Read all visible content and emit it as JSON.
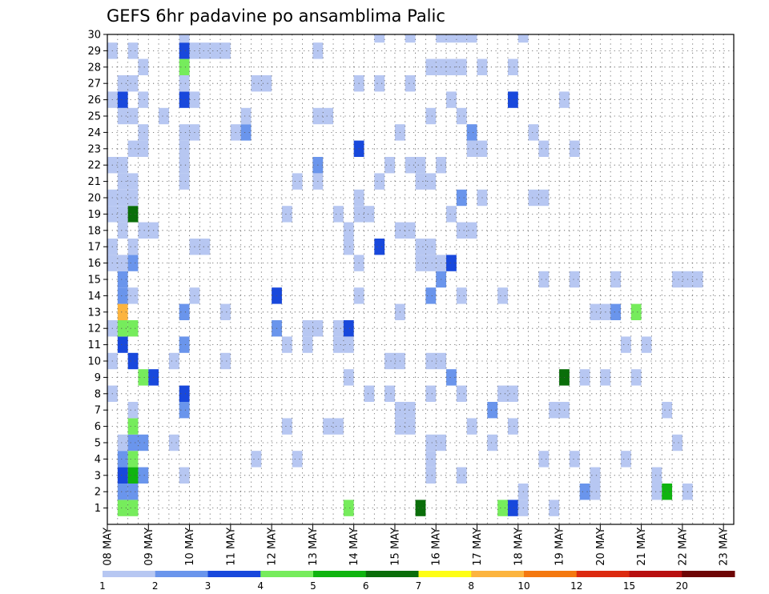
{
  "chart_data": {
    "type": "heatmap",
    "title": "GEFS 6hr padavine po ansamblima Palic",
    "y_ticks": [
      "1",
      "2",
      "3",
      "4",
      "5",
      "6",
      "7",
      "8",
      "9",
      "10",
      "11",
      "12",
      "13",
      "14",
      "15",
      "16",
      "17",
      "18",
      "19",
      "20",
      "21",
      "22",
      "23",
      "24",
      "25",
      "26",
      "27",
      "28",
      "29",
      "30"
    ],
    "x_ticks": [
      "08 MAY",
      "09 MAY",
      "10 MAY",
      "11 MAY",
      "12 MAY",
      "13 MAY",
      "14 MAY",
      "15 MAY",
      "16 MAY",
      "17 MAY",
      "18 MAY",
      "19 MAY",
      "20 MAY",
      "21 MAY",
      "22 MAY",
      "23 MAY"
    ],
    "time_steps_per_day": 4,
    "x_range": [
      0,
      61
    ],
    "y_range": [
      0,
      30
    ],
    "grid": "dotted",
    "legend": {
      "placement": "bottom",
      "colors": [
        "#b7c7f2",
        "#6a95ec",
        "#1848dc",
        "#76ec5c",
        "#10b410",
        "#0a6e0a",
        "#fefe14",
        "#fcb43e",
        "#f47810",
        "#dc2a10",
        "#b81010",
        "#6e0606"
      ],
      "labels": [
        "1",
        "2",
        "3",
        "4",
        "5",
        "6",
        "7",
        "8",
        "10",
        "12",
        "15",
        "20"
      ]
    },
    "palette_by_class": {
      "1": "#b7c7f2",
      "2": "#6a95ec",
      "3": "#1848dc",
      "4": "#76ec5c",
      "5": "#10b410",
      "6": "#0a6e0a",
      "7": "#fefe14",
      "8": "#fcb43e",
      "9": "#f47810",
      "10": "#dc2a10",
      "11": "#b81010",
      "12": "#6e0606"
    },
    "cells": [
      [
        1,
        1,
        4
      ],
      [
        1,
        2,
        4
      ],
      [
        1,
        23,
        4
      ],
      [
        1,
        30,
        6
      ],
      [
        1,
        38,
        4
      ],
      [
        1,
        39,
        3
      ],
      [
        1,
        40,
        1
      ],
      [
        1,
        43,
        1
      ],
      [
        2,
        1,
        2
      ],
      [
        2,
        2,
        2
      ],
      [
        2,
        40,
        1
      ],
      [
        2,
        46,
        2
      ],
      [
        2,
        47,
        1
      ],
      [
        2,
        53,
        1
      ],
      [
        2,
        54,
        5
      ],
      [
        2,
        56,
        1
      ],
      [
        3,
        1,
        3
      ],
      [
        3,
        2,
        5
      ],
      [
        3,
        3,
        2
      ],
      [
        3,
        7,
        1
      ],
      [
        3,
        31,
        1
      ],
      [
        3,
        34,
        1
      ],
      [
        3,
        47,
        1
      ],
      [
        3,
        53,
        1
      ],
      [
        4,
        1,
        2
      ],
      [
        4,
        2,
        4
      ],
      [
        4,
        14,
        1
      ],
      [
        4,
        18,
        1
      ],
      [
        4,
        31,
        1
      ],
      [
        4,
        42,
        1
      ],
      [
        4,
        45,
        1
      ],
      [
        4,
        50,
        1
      ],
      [
        5,
        1,
        1
      ],
      [
        5,
        2,
        2
      ],
      [
        5,
        3,
        2
      ],
      [
        5,
        6,
        1
      ],
      [
        5,
        31,
        1
      ],
      [
        5,
        32,
        1
      ],
      [
        5,
        37,
        1
      ],
      [
        5,
        55,
        1
      ],
      [
        6,
        2,
        4
      ],
      [
        6,
        17,
        1
      ],
      [
        6,
        21,
        1
      ],
      [
        6,
        22,
        1
      ],
      [
        6,
        28,
        1
      ],
      [
        6,
        29,
        1
      ],
      [
        6,
        35,
        1
      ],
      [
        6,
        39,
        1
      ],
      [
        7,
        2,
        1
      ],
      [
        7,
        7,
        2
      ],
      [
        7,
        28,
        1
      ],
      [
        7,
        29,
        1
      ],
      [
        7,
        37,
        2
      ],
      [
        7,
        43,
        1
      ],
      [
        7,
        44,
        1
      ],
      [
        7,
        54,
        1
      ],
      [
        8,
        0,
        1
      ],
      [
        8,
        7,
        3
      ],
      [
        8,
        25,
        1
      ],
      [
        8,
        27,
        1
      ],
      [
        8,
        31,
        1
      ],
      [
        8,
        34,
        1
      ],
      [
        8,
        38,
        1
      ],
      [
        8,
        39,
        1
      ],
      [
        9,
        3,
        4
      ],
      [
        9,
        4,
        3
      ],
      [
        9,
        23,
        1
      ],
      [
        9,
        33,
        2
      ],
      [
        9,
        44,
        6
      ],
      [
        9,
        46,
        1
      ],
      [
        9,
        48,
        1
      ],
      [
        9,
        51,
        1
      ],
      [
        10,
        0,
        1
      ],
      [
        10,
        2,
        3
      ],
      [
        10,
        6,
        1
      ],
      [
        10,
        11,
        1
      ],
      [
        10,
        27,
        1
      ],
      [
        10,
        28,
        1
      ],
      [
        10,
        31,
        1
      ],
      [
        10,
        32,
        1
      ],
      [
        11,
        1,
        3
      ],
      [
        11,
        7,
        2
      ],
      [
        11,
        17,
        1
      ],
      [
        11,
        19,
        1
      ],
      [
        11,
        22,
        1
      ],
      [
        11,
        23,
        1
      ],
      [
        11,
        50,
        1
      ],
      [
        11,
        52,
        1
      ],
      [
        12,
        0,
        1
      ],
      [
        12,
        1,
        4
      ],
      [
        12,
        2,
        4
      ],
      [
        12,
        16,
        2
      ],
      [
        12,
        19,
        1
      ],
      [
        12,
        20,
        1
      ],
      [
        12,
        22,
        1
      ],
      [
        12,
        23,
        3
      ],
      [
        13,
        1,
        8
      ],
      [
        13,
        7,
        2
      ],
      [
        13,
        11,
        1
      ],
      [
        13,
        28,
        1
      ],
      [
        13,
        47,
        1
      ],
      [
        13,
        48,
        1
      ],
      [
        13,
        49,
        2
      ],
      [
        13,
        51,
        4
      ],
      [
        14,
        1,
        2
      ],
      [
        14,
        2,
        1
      ],
      [
        14,
        8,
        1
      ],
      [
        14,
        16,
        3
      ],
      [
        14,
        24,
        1
      ],
      [
        14,
        31,
        2
      ],
      [
        14,
        34,
        1
      ],
      [
        14,
        38,
        1
      ],
      [
        15,
        1,
        2
      ],
      [
        15,
        32,
        2
      ],
      [
        15,
        42,
        1
      ],
      [
        15,
        45,
        1
      ],
      [
        15,
        49,
        1
      ],
      [
        15,
        55,
        1
      ],
      [
        15,
        56,
        1
      ],
      [
        15,
        57,
        1
      ],
      [
        16,
        0,
        1
      ],
      [
        16,
        1,
        1
      ],
      [
        16,
        2,
        2
      ],
      [
        16,
        24,
        1
      ],
      [
        16,
        30,
        1
      ],
      [
        16,
        31,
        1
      ],
      [
        16,
        32,
        1
      ],
      [
        16,
        33,
        3
      ],
      [
        17,
        0,
        1
      ],
      [
        17,
        2,
        1
      ],
      [
        17,
        8,
        1
      ],
      [
        17,
        9,
        1
      ],
      [
        17,
        23,
        1
      ],
      [
        17,
        26,
        3
      ],
      [
        17,
        30,
        1
      ],
      [
        17,
        31,
        1
      ],
      [
        18,
        1,
        1
      ],
      [
        18,
        3,
        1
      ],
      [
        18,
        4,
        1
      ],
      [
        18,
        23,
        1
      ],
      [
        18,
        28,
        1
      ],
      [
        18,
        29,
        1
      ],
      [
        18,
        34,
        1
      ],
      [
        18,
        35,
        1
      ],
      [
        19,
        0,
        1
      ],
      [
        19,
        1,
        1
      ],
      [
        19,
        2,
        6
      ],
      [
        19,
        17,
        1
      ],
      [
        19,
        22,
        1
      ],
      [
        19,
        24,
        1
      ],
      [
        19,
        25,
        1
      ],
      [
        19,
        33,
        1
      ],
      [
        20,
        0,
        1
      ],
      [
        20,
        1,
        1
      ],
      [
        20,
        2,
        1
      ],
      [
        20,
        24,
        1
      ],
      [
        20,
        34,
        2
      ],
      [
        20,
        36,
        1
      ],
      [
        20,
        41,
        1
      ],
      [
        20,
        42,
        1
      ],
      [
        21,
        1,
        1
      ],
      [
        21,
        2,
        1
      ],
      [
        21,
        7,
        1
      ],
      [
        21,
        18,
        1
      ],
      [
        21,
        20,
        1
      ],
      [
        21,
        26,
        1
      ],
      [
        21,
        30,
        1
      ],
      [
        21,
        31,
        1
      ],
      [
        22,
        0,
        1
      ],
      [
        22,
        1,
        1
      ],
      [
        22,
        7,
        1
      ],
      [
        22,
        20,
        2
      ],
      [
        22,
        27,
        1
      ],
      [
        22,
        29,
        1
      ],
      [
        22,
        30,
        1
      ],
      [
        22,
        32,
        1
      ],
      [
        23,
        2,
        1
      ],
      [
        23,
        3,
        1
      ],
      [
        23,
        7,
        1
      ],
      [
        23,
        24,
        3
      ],
      [
        23,
        35,
        1
      ],
      [
        23,
        36,
        1
      ],
      [
        23,
        42,
        1
      ],
      [
        23,
        45,
        1
      ],
      [
        24,
        3,
        1
      ],
      [
        24,
        7,
        1
      ],
      [
        24,
        8,
        1
      ],
      [
        24,
        12,
        1
      ],
      [
        24,
        13,
        2
      ],
      [
        24,
        28,
        1
      ],
      [
        24,
        35,
        2
      ],
      [
        24,
        41,
        1
      ],
      [
        25,
        1,
        1
      ],
      [
        25,
        2,
        1
      ],
      [
        25,
        5,
        1
      ],
      [
        25,
        13,
        1
      ],
      [
        25,
        20,
        1
      ],
      [
        25,
        21,
        1
      ],
      [
        25,
        31,
        1
      ],
      [
        25,
        34,
        1
      ],
      [
        26,
        0,
        1
      ],
      [
        26,
        1,
        3
      ],
      [
        26,
        3,
        1
      ],
      [
        26,
        7,
        3
      ],
      [
        26,
        8,
        1
      ],
      [
        26,
        33,
        1
      ],
      [
        26,
        39,
        3
      ],
      [
        26,
        44,
        1
      ],
      [
        27,
        1,
        1
      ],
      [
        27,
        2,
        1
      ],
      [
        27,
        7,
        1
      ],
      [
        27,
        14,
        1
      ],
      [
        27,
        15,
        1
      ],
      [
        27,
        24,
        1
      ],
      [
        27,
        26,
        1
      ],
      [
        27,
        29,
        1
      ],
      [
        28,
        3,
        1
      ],
      [
        28,
        7,
        4
      ],
      [
        28,
        31,
        1
      ],
      [
        28,
        32,
        1
      ],
      [
        28,
        33,
        1
      ],
      [
        28,
        34,
        1
      ],
      [
        28,
        36,
        1
      ],
      [
        28,
        39,
        1
      ],
      [
        29,
        0,
        1
      ],
      [
        29,
        2,
        1
      ],
      [
        29,
        7,
        3
      ],
      [
        29,
        8,
        1
      ],
      [
        29,
        9,
        1
      ],
      [
        29,
        10,
        1
      ],
      [
        29,
        11,
        1
      ],
      [
        29,
        20,
        1
      ],
      [
        30,
        7,
        1
      ],
      [
        30,
        26,
        1
      ],
      [
        30,
        29,
        1
      ],
      [
        30,
        32,
        1
      ],
      [
        30,
        33,
        1
      ],
      [
        30,
        34,
        1
      ],
      [
        30,
        35,
        1
      ],
      [
        30,
        40,
        1
      ]
    ]
  }
}
